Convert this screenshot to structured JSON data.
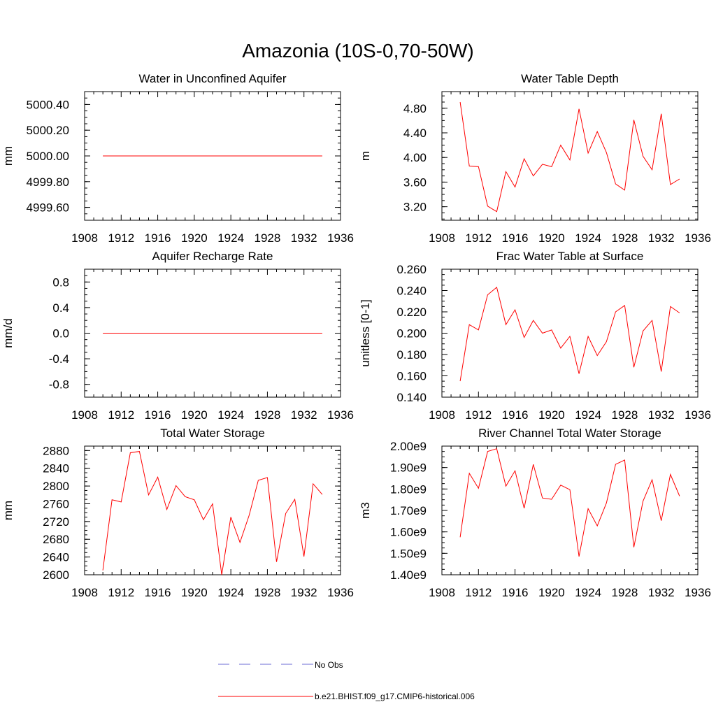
{
  "figure_title": "Amazonia (10S-0,70-50W)",
  "colors": {
    "model": "#ff0000",
    "obs": "#6b6bd6",
    "axis": "#000000"
  },
  "legend": {
    "entries": [
      {
        "label": "No Obs",
        "style": "dashed",
        "color": "#6b6bd6"
      },
      {
        "label": "b.e21.BHIST.f09_g17.CMIP6-historical.006",
        "style": "solid",
        "color": "#ff0000"
      }
    ]
  },
  "chart_data": [
    {
      "type": "line",
      "title": "Water in Unconfined Aquifer",
      "xlabel": "",
      "ylabel": "mm",
      "xlim": [
        1908,
        1936
      ],
      "ylim": [
        4999.5,
        5000.5
      ],
      "xticks": [
        1908,
        1912,
        1916,
        1920,
        1924,
        1928,
        1932,
        1936
      ],
      "xtick_labels": [
        "1908",
        "1912",
        "1916",
        "1920",
        "1924",
        "1928",
        "1932",
        "1936"
      ],
      "yticks": [
        4999.6,
        4999.8,
        5000.0,
        5000.2,
        5000.4
      ],
      "ytick_labels": [
        "4999.60",
        "4999.80",
        "5000.00",
        "5000.20",
        "5000.40"
      ],
      "series": [
        {
          "name": "b.e21.BHIST.f09_g17.CMIP6-historical.006",
          "x": [
            1910,
            1911,
            1912,
            1913,
            1914,
            1915,
            1916,
            1917,
            1918,
            1919,
            1920,
            1921,
            1922,
            1923,
            1924,
            1925,
            1926,
            1927,
            1928,
            1929,
            1930,
            1931,
            1932,
            1933,
            1934
          ],
          "values": [
            5000,
            5000,
            5000,
            5000,
            5000,
            5000,
            5000,
            5000,
            5000,
            5000,
            5000,
            5000,
            5000,
            5000,
            5000,
            5000,
            5000,
            5000,
            5000,
            5000,
            5000,
            5000,
            5000,
            5000,
            5000
          ]
        }
      ]
    },
    {
      "type": "line",
      "title": "Water Table Depth",
      "xlabel": "",
      "ylabel": "m",
      "xlim": [
        1908,
        1936
      ],
      "ylim": [
        2.98,
        5.07
      ],
      "xticks": [
        1908,
        1912,
        1916,
        1920,
        1924,
        1928,
        1932,
        1936
      ],
      "xtick_labels": [
        "1908",
        "1912",
        "1916",
        "1920",
        "1924",
        "1928",
        "1932",
        "1936"
      ],
      "yticks": [
        3.2,
        3.6,
        4.0,
        4.4,
        4.8
      ],
      "ytick_labels": [
        "3.20",
        "3.60",
        "4.00",
        "4.40",
        "4.80"
      ],
      "series": [
        {
          "name": "b.e21.BHIST.f09_g17.CMIP6-historical.006",
          "x": [
            1910,
            1911,
            1912,
            1913,
            1914,
            1915,
            1916,
            1917,
            1918,
            1919,
            1920,
            1921,
            1922,
            1923,
            1924,
            1925,
            1926,
            1927,
            1928,
            1929,
            1930,
            1931,
            1932,
            1933,
            1934
          ],
          "values": [
            4.9,
            3.86,
            3.85,
            3.21,
            3.12,
            3.77,
            3.52,
            3.98,
            3.7,
            3.89,
            3.85,
            4.2,
            3.96,
            4.79,
            4.07,
            4.42,
            4.08,
            3.57,
            3.47,
            4.61,
            4.02,
            3.8,
            4.71,
            3.56,
            3.65
          ]
        }
      ]
    },
    {
      "type": "line",
      "title": "Aquifer Recharge Rate",
      "xlabel": "",
      "ylabel": "mm/d",
      "xlim": [
        1908,
        1936
      ],
      "ylim": [
        -1.0,
        1.0
      ],
      "xticks": [
        1908,
        1912,
        1916,
        1920,
        1924,
        1928,
        1932,
        1936
      ],
      "xtick_labels": [
        "1908",
        "1912",
        "1916",
        "1920",
        "1924",
        "1928",
        "1932",
        "1936"
      ],
      "yticks": [
        -0.8,
        -0.4,
        0.0,
        0.4,
        0.8
      ],
      "ytick_labels": [
        "-0.8",
        "-0.4",
        "0.0",
        "0.4",
        "0.8"
      ],
      "series": [
        {
          "name": "b.e21.BHIST.f09_g17.CMIP6-historical.006",
          "x": [
            1910,
            1911,
            1912,
            1913,
            1914,
            1915,
            1916,
            1917,
            1918,
            1919,
            1920,
            1921,
            1922,
            1923,
            1924,
            1925,
            1926,
            1927,
            1928,
            1929,
            1930,
            1931,
            1932,
            1933,
            1934
          ],
          "values": [
            0,
            0,
            0,
            0,
            0,
            0,
            0,
            0,
            0,
            0,
            0,
            0,
            0,
            0,
            0,
            0,
            0,
            0,
            0,
            0,
            0,
            0,
            0,
            0,
            0
          ]
        }
      ]
    },
    {
      "type": "line",
      "title": "Frac Water Table at Surface",
      "xlabel": "",
      "ylabel": "unitless [0-1]",
      "xlim": [
        1908,
        1936
      ],
      "ylim": [
        0.14,
        0.26
      ],
      "xticks": [
        1908,
        1912,
        1916,
        1920,
        1924,
        1928,
        1932,
        1936
      ],
      "xtick_labels": [
        "1908",
        "1912",
        "1916",
        "1920",
        "1924",
        "1928",
        "1932",
        "1936"
      ],
      "yticks": [
        0.14,
        0.16,
        0.18,
        0.2,
        0.22,
        0.24,
        0.26
      ],
      "ytick_labels": [
        "0.140",
        "0.160",
        "0.180",
        "0.200",
        "0.220",
        "0.240",
        "0.260"
      ],
      "series": [
        {
          "name": "b.e21.BHIST.f09_g17.CMIP6-historical.006",
          "x": [
            1910,
            1911,
            1912,
            1913,
            1914,
            1915,
            1916,
            1917,
            1918,
            1919,
            1920,
            1921,
            1922,
            1923,
            1924,
            1925,
            1926,
            1927,
            1928,
            1929,
            1930,
            1931,
            1932,
            1933,
            1934
          ],
          "values": [
            0.155,
            0.208,
            0.203,
            0.236,
            0.243,
            0.208,
            0.222,
            0.196,
            0.212,
            0.2,
            0.203,
            0.186,
            0.197,
            0.162,
            0.197,
            0.179,
            0.192,
            0.22,
            0.226,
            0.168,
            0.202,
            0.212,
            0.164,
            0.225,
            0.219
          ]
        }
      ]
    },
    {
      "type": "line",
      "title": "Total Water Storage",
      "xlabel": "",
      "ylabel": "mm",
      "xlim": [
        1908,
        1936
      ],
      "ylim": [
        2600,
        2890
      ],
      "xticks": [
        1908,
        1912,
        1916,
        1920,
        1924,
        1928,
        1932,
        1936
      ],
      "xtick_labels": [
        "1908",
        "1912",
        "1916",
        "1920",
        "1924",
        "1928",
        "1932",
        "1936"
      ],
      "yticks": [
        2600,
        2640,
        2680,
        2720,
        2760,
        2800,
        2840,
        2880
      ],
      "ytick_labels": [
        "2600",
        "2640",
        "2680",
        "2720",
        "2760",
        "2800",
        "2840",
        "2880"
      ],
      "series": [
        {
          "name": "b.e21.BHIST.f09_g17.CMIP6-historical.006",
          "x": [
            1910,
            1911,
            1912,
            1913,
            1914,
            1915,
            1916,
            1917,
            1918,
            1919,
            1920,
            1921,
            1922,
            1923,
            1924,
            1925,
            1926,
            1927,
            1928,
            1929,
            1930,
            1931,
            1932,
            1933,
            1934
          ],
          "values": [
            2610,
            2769,
            2764,
            2875,
            2878,
            2780,
            2820,
            2747,
            2801,
            2776,
            2769,
            2724,
            2760,
            2600,
            2730,
            2673,
            2734,
            2813,
            2819,
            2629,
            2738,
            2770,
            2641,
            2805,
            2781
          ]
        }
      ]
    },
    {
      "type": "line",
      "title": "River Channel Total Water Storage",
      "xlabel": "",
      "ylabel": "m3",
      "xlim": [
        1908,
        1936
      ],
      "ylim": [
        1400000000.0,
        2000000000.0
      ],
      "xticks": [
        1908,
        1912,
        1916,
        1920,
        1924,
        1928,
        1932,
        1936
      ],
      "xtick_labels": [
        "1908",
        "1912",
        "1916",
        "1920",
        "1924",
        "1928",
        "1932",
        "1936"
      ],
      "yticks": [
        1400000000.0,
        1500000000.0,
        1600000000.0,
        1700000000.0,
        1800000000.0,
        1900000000.0,
        2000000000.0
      ],
      "ytick_labels": [
        "1.40e9",
        "1.50e9",
        "1.60e9",
        "1.70e9",
        "1.80e9",
        "1.90e9",
        "2.00e9"
      ],
      "series": [
        {
          "name": "b.e21.BHIST.f09_g17.CMIP6-historical.006",
          "x": [
            1910,
            1911,
            1912,
            1913,
            1914,
            1915,
            1916,
            1917,
            1918,
            1919,
            1920,
            1921,
            1922,
            1923,
            1924,
            1925,
            1926,
            1927,
            1928,
            1929,
            1930,
            1931,
            1932,
            1933,
            1934
          ],
          "values": [
            1575000000.0,
            1873000000.0,
            1803000000.0,
            1975000000.0,
            1988000000.0,
            1813000000.0,
            1885000000.0,
            1710000000.0,
            1915000000.0,
            1758000000.0,
            1752000000.0,
            1818000000.0,
            1797000000.0,
            1485000000.0,
            1708000000.0,
            1628000000.0,
            1735000000.0,
            1915000000.0,
            1935000000.0,
            1528000000.0,
            1743000000.0,
            1843000000.0,
            1652000000.0,
            1868000000.0,
            1767000000.0
          ]
        }
      ]
    }
  ]
}
